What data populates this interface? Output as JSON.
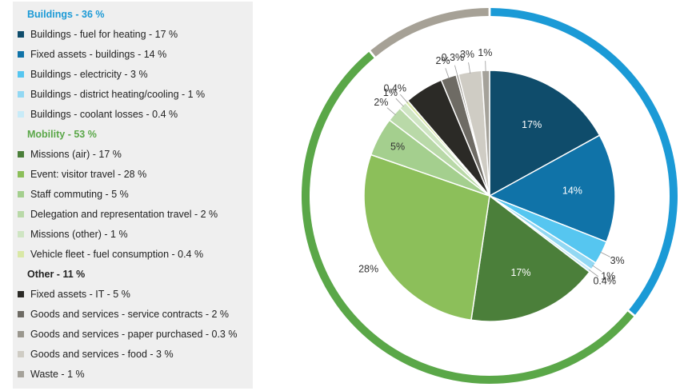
{
  "chart_data": {
    "type": "pie",
    "title": "",
    "legend_position": "left",
    "groups": [
      {
        "name": "Buildings - 36 %",
        "value": 36,
        "color": "#1b9ad6",
        "items": [
          {
            "name": "Buildings - fuel for heating - 17 %",
            "value": 17,
            "slice_label": "17%",
            "color": "#0f4c6b"
          },
          {
            "name": "Fixed assets - buildings - 14 %",
            "value": 14,
            "slice_label": "14%",
            "color": "#1073a8"
          },
          {
            "name": "Buildings  - electricity - 3 %",
            "value": 3,
            "slice_label": "3%",
            "color": "#56c6f0"
          },
          {
            "name": "Buildings - district heating/cooling - 1 %",
            "value": 1,
            "slice_label": "1%",
            "color": "#92d8f3"
          },
          {
            "name": "Buildings - coolant losses - 0.4 %",
            "value": 0.4,
            "slice_label": "0.4%",
            "color": "#c8ebf8"
          }
        ]
      },
      {
        "name": "Mobility - 53 %",
        "value": 53,
        "color": "#5aa748",
        "items": [
          {
            "name": "Missions (air) - 17 %",
            "value": 17,
            "slice_label": "17%",
            "color": "#4b7f3a"
          },
          {
            "name": "Event: visitor travel - 28 %",
            "value": 28,
            "slice_label": "28%",
            "color": "#8cbf5a"
          },
          {
            "name": "Staff commuting - 5 %",
            "value": 5,
            "slice_label": "5%",
            "color": "#a4cf8e"
          },
          {
            "name": " Delegation and representation travel - 2 %",
            "value": 2,
            "slice_label": "2%",
            "color": "#b9d9a8"
          },
          {
            "name": "Missions (other) - 1 %",
            "value": 1,
            "slice_label": "1%",
            "color": "#cfe5c3"
          },
          {
            "name": "Vehicle fleet - fuel consumption - 0.4 %",
            "value": 0.4,
            "slice_label": "0.4%",
            "color": "#d9e8a6"
          }
        ]
      },
      {
        "name": "Other - 11 %",
        "value": 11,
        "color": "#a6a196",
        "items": [
          {
            "name": "Fixed assets - IT - 5 %",
            "value": 5,
            "slice_label": "",
            "color": "#2b2a26"
          },
          {
            "name": "Goods and services - service contracts - 2 %",
            "value": 2,
            "slice_label": "2%",
            "color": "#6e6b64"
          },
          {
            "name": "Goods and services - paper purchased - 0.3 %",
            "value": 0.3,
            "slice_label": "0.3%",
            "color": "#9a978e"
          },
          {
            "name": "Goods and services - food - 3 %",
            "value": 3,
            "slice_label": "3%",
            "color": "#cfccc4"
          },
          {
            "name": "Waste - 1 %",
            "value": 1,
            "slice_label": "1%",
            "color": "#a5a29a"
          }
        ]
      }
    ],
    "inner_pie_order": [
      "Buildings - fuel for heating - 17 %",
      "Fixed assets - buildings - 14 %",
      "Buildings  - electricity - 3 %",
      "Buildings - district heating/cooling - 1 %",
      "Buildings - coolant losses - 0.4 %",
      "Missions (air) - 17 %",
      "Event: visitor travel - 28 %",
      "Staff commuting - 5 %",
      " Delegation and representation travel - 2 %",
      "Missions (other) - 1 %",
      "Vehicle fleet - fuel consumption - 0.4 %",
      "Fixed assets - IT - 5 %",
      "Goods and services - service contracts - 2 %",
      "Goods and services - paper purchased - 0.3 %",
      "Goods and services - food - 3 %",
      "Waste - 1 %"
    ]
  }
}
